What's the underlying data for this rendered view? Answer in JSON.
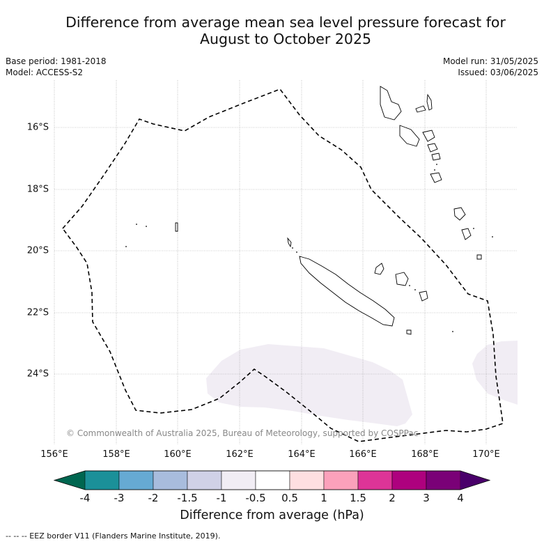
{
  "title": {
    "line1": "Difference from average mean sea level pressure forecast for",
    "line2": "August to October 2025"
  },
  "meta_left": {
    "base_period": "Base period: 1981-2018",
    "model": "Model: ACCESS-S2"
  },
  "meta_right": {
    "model_run": "Model run: 31/05/2025",
    "issued": "Issued: 03/06/2025"
  },
  "map": {
    "lat_labels": [
      "16°S",
      "18°S",
      "20°S",
      "22°S",
      "24°S"
    ],
    "lon_labels": [
      "156°E",
      "158°E",
      "160°E",
      "162°E",
      "164°E",
      "166°E",
      "168°E",
      "170°E"
    ],
    "copyright": "© Commonwealth of Australia 2025, Bureau of Meteorology, supported by COSPPac",
    "anomaly_fill_color": "#f1edf4",
    "anomaly_class": "-0.5 to -1 hPa"
  },
  "colorbar": {
    "ticks": [
      "-4",
      "-3",
      "-2",
      "-1.5",
      "-1",
      "-0.5",
      "0.5",
      "1",
      "1.5",
      "2",
      "3",
      "4"
    ],
    "colors": [
      "#1b9099",
      "#66aad3",
      "#a8bcdd",
      "#d0d1e7",
      "#f1edf4",
      "#ffffff",
      "#fedfe1",
      "#fba1bb",
      "#dd3497",
      "#ae017e",
      "#7a0177"
    ],
    "under_color": "#006650",
    "over_color": "#49006a",
    "label": "Difference from average (hPa)"
  },
  "legend": {
    "eez": "--  --  -- EEZ border V11 (Flanders Marine Institute, 2019)."
  }
}
